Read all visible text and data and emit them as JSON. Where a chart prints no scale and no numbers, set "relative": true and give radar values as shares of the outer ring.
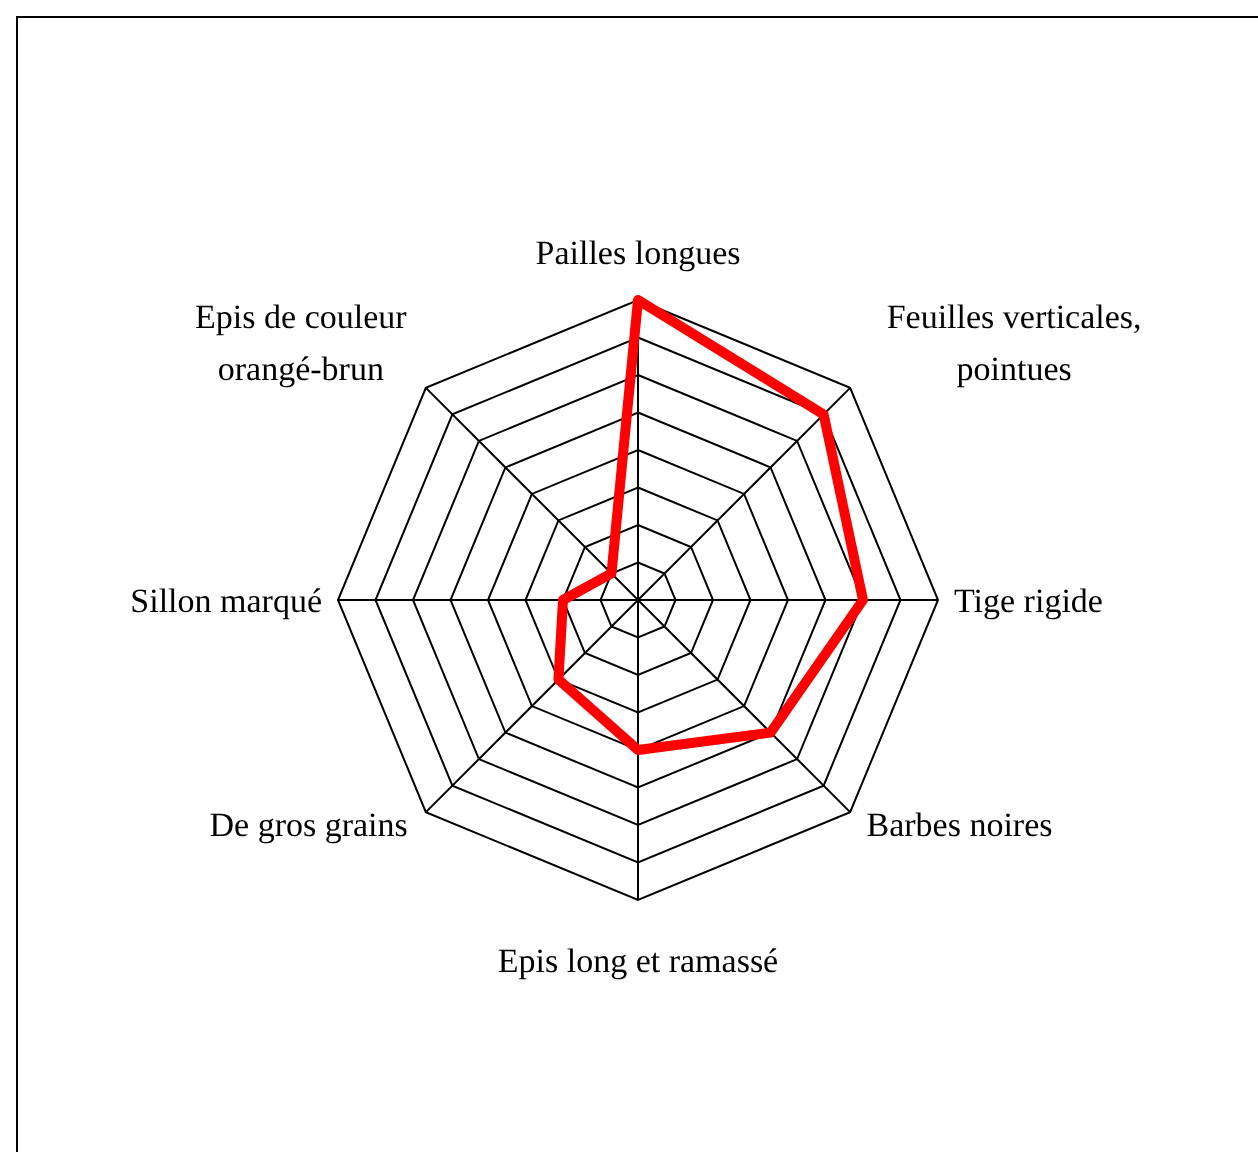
{
  "chart_data": {
    "type": "radar",
    "relative": true,
    "grid": true,
    "line_style": "solid",
    "marker": "none",
    "categories": [
      "Pailles longues",
      "Feuilles verticales,\npointues",
      "Tige rigide",
      "Barbes noires",
      "Epis long et ramassé",
      "De gros grains",
      "Sillon marqué",
      "Epis de couleur\norangé-brun"
    ],
    "series": [
      {
        "color": "#ff0000",
        "values": [
          1,
          0.875,
          0.75,
          0.625,
          0.5,
          0.375,
          0.25,
          0.125
        ]
      }
    ]
  }
}
